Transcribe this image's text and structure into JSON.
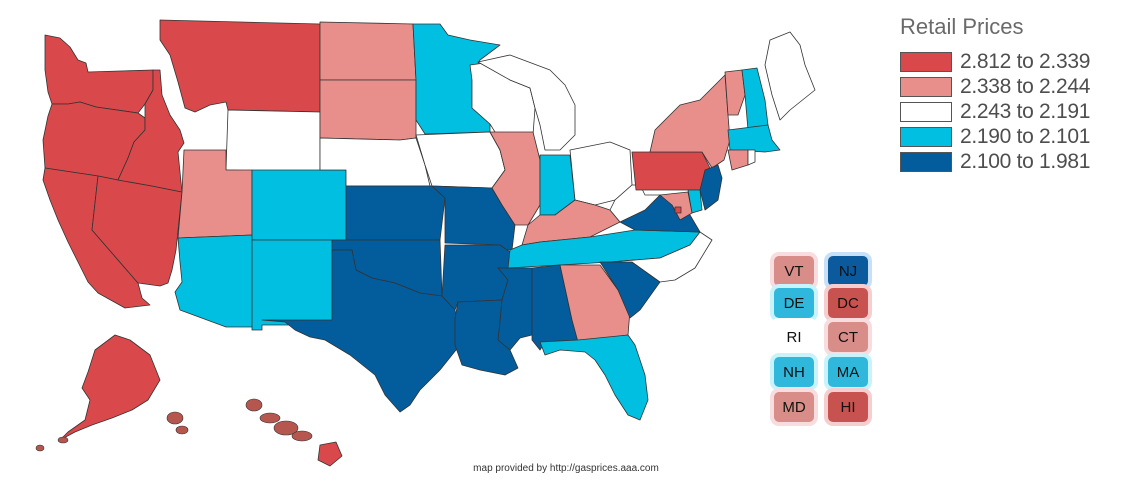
{
  "legend": {
    "title": "Retail Prices",
    "ranges": [
      {
        "label": "2.812 to 2.339",
        "color": "#d9494b"
      },
      {
        "label": "2.338 to 2.244",
        "color": "#e88f8c"
      },
      {
        "label": "2.243 to 2.191",
        "color": "#ffffff"
      },
      {
        "label": "2.190 to 2.101",
        "color": "#00bfe0"
      },
      {
        "label": "2.100 to 1.981",
        "color": "#035d9c"
      }
    ]
  },
  "states": [
    {
      "abbr": "WA",
      "bin": 0
    },
    {
      "abbr": "OR",
      "bin": 0
    },
    {
      "abbr": "CA",
      "bin": 0
    },
    {
      "abbr": "NV",
      "bin": 0
    },
    {
      "abbr": "ID",
      "bin": 0
    },
    {
      "abbr": "MT",
      "bin": 0
    },
    {
      "abbr": "WY",
      "bin": 2
    },
    {
      "abbr": "UT",
      "bin": 1
    },
    {
      "abbr": "AZ",
      "bin": 3
    },
    {
      "abbr": "CO",
      "bin": 3
    },
    {
      "abbr": "NM",
      "bin": 3
    },
    {
      "abbr": "ND",
      "bin": 1
    },
    {
      "abbr": "SD",
      "bin": 1
    },
    {
      "abbr": "NE",
      "bin": 2
    },
    {
      "abbr": "KS",
      "bin": 4
    },
    {
      "abbr": "OK",
      "bin": 4
    },
    {
      "abbr": "TX",
      "bin": 4
    },
    {
      "abbr": "MN",
      "bin": 3
    },
    {
      "abbr": "IA",
      "bin": 2
    },
    {
      "abbr": "MO",
      "bin": 4
    },
    {
      "abbr": "AR",
      "bin": 4
    },
    {
      "abbr": "LA",
      "bin": 4
    },
    {
      "abbr": "WI",
      "bin": 2
    },
    {
      "abbr": "IL",
      "bin": 1
    },
    {
      "abbr": "MI",
      "bin": 2
    },
    {
      "abbr": "IN",
      "bin": 3
    },
    {
      "abbr": "OH",
      "bin": 2
    },
    {
      "abbr": "KY",
      "bin": 1
    },
    {
      "abbr": "TN",
      "bin": 3
    },
    {
      "abbr": "MS",
      "bin": 4
    },
    {
      "abbr": "AL",
      "bin": 4
    },
    {
      "abbr": "GA",
      "bin": 1
    },
    {
      "abbr": "FL",
      "bin": 3
    },
    {
      "abbr": "SC",
      "bin": 4
    },
    {
      "abbr": "NC",
      "bin": 2
    },
    {
      "abbr": "VA",
      "bin": 4
    },
    {
      "abbr": "WV",
      "bin": 2
    },
    {
      "abbr": "PA",
      "bin": 0
    },
    {
      "abbr": "NY",
      "bin": 1
    },
    {
      "abbr": "ME",
      "bin": 2
    },
    {
      "abbr": "VT",
      "bin": 1
    },
    {
      "abbr": "NH",
      "bin": 3
    },
    {
      "abbr": "MA",
      "bin": 3
    },
    {
      "abbr": "CT",
      "bin": 1
    },
    {
      "abbr": "RI",
      "bin": 2
    },
    {
      "abbr": "NJ",
      "bin": 4
    },
    {
      "abbr": "DE",
      "bin": 3
    },
    {
      "abbr": "MD",
      "bin": 1
    },
    {
      "abbr": "DC",
      "bin": 0
    },
    {
      "abbr": "AK",
      "bin": 0
    },
    {
      "abbr": "HI",
      "bin": 0
    }
  ],
  "small_states": [
    {
      "abbr": "VT",
      "bin": 1
    },
    {
      "abbr": "NJ",
      "bin": 4
    },
    {
      "abbr": "DE",
      "bin": 3
    },
    {
      "abbr": "DC",
      "bin": 0
    },
    {
      "abbr": "RI",
      "bin": 2
    },
    {
      "abbr": "CT",
      "bin": 1
    },
    {
      "abbr": "NH",
      "bin": 3
    },
    {
      "abbr": "MA",
      "bin": 3
    },
    {
      "abbr": "MD",
      "bin": 1
    },
    {
      "abbr": "HI",
      "bin": 0
    }
  ],
  "footer": "map provided by http://gasprices.aaa.com"
}
